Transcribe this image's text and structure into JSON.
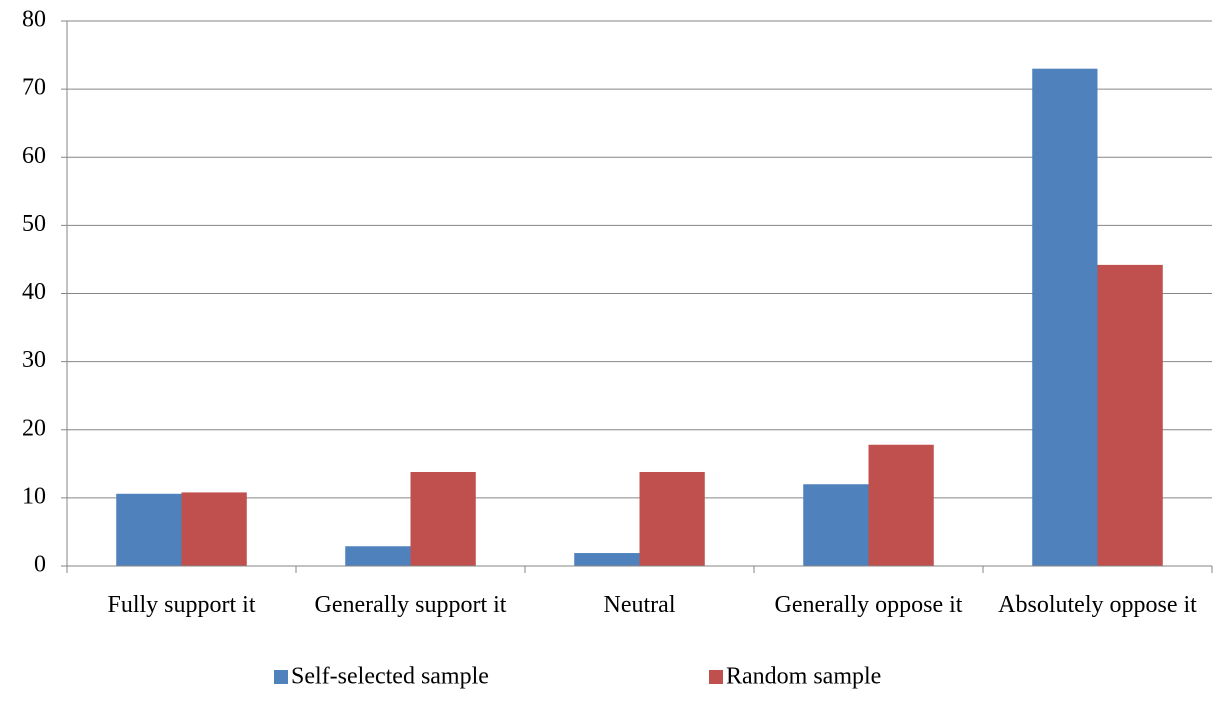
{
  "chart_data": {
    "type": "bar",
    "categories": [
      "Fully support it",
      "Generally support it",
      "Neutral",
      "Generally oppose it",
      "Absolutely oppose it"
    ],
    "series": [
      {
        "name": "Self-selected sample",
        "color": "#4f81bd",
        "values": [
          10.6,
          2.9,
          1.9,
          12.0,
          73.0
        ]
      },
      {
        "name": "Random sample",
        "color": "#c0504d",
        "values": [
          10.8,
          13.8,
          13.8,
          17.8,
          44.2
        ]
      }
    ],
    "ylim": [
      0,
      80
    ],
    "yticks": [
      0,
      10,
      20,
      30,
      40,
      50,
      60,
      70,
      80
    ],
    "grid": true,
    "legend": "bottom"
  }
}
